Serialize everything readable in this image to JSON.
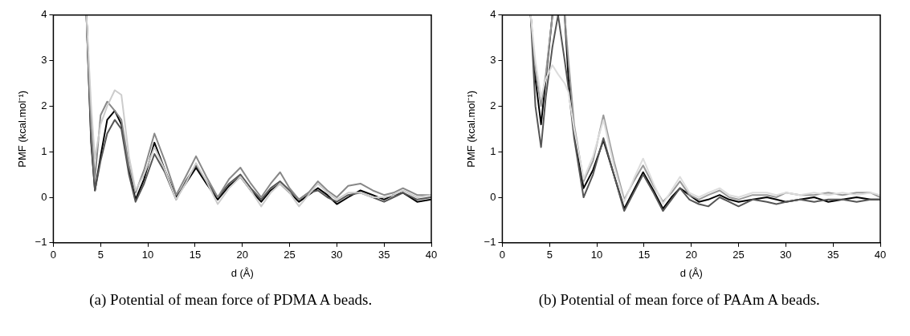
{
  "chart_data": [
    {
      "type": "line",
      "xlabel": "d (Å)",
      "ylabel": "PMF (kcal.mol⁻¹)",
      "annotations": [
        "(a) Potential of mean force of PDMA A beads."
      ],
      "xlim": [
        0,
        40
      ],
      "ylim": [
        -1,
        4
      ],
      "xticks": [
        0,
        5,
        10,
        15,
        20,
        25,
        30,
        35,
        40
      ],
      "yticks": [
        {
          "value": -1,
          "label": "−1"
        },
        0,
        1,
        2,
        3,
        4
      ],
      "grid": false,
      "legend": false,
      "marker": "none",
      "line_style": "solid",
      "x": [
        3.5,
        4.0,
        4.4,
        5.0,
        5.7,
        6.5,
        7.2,
        8.0,
        8.7,
        9.6,
        10.7,
        11.8,
        13.0,
        14.0,
        15.1,
        16.2,
        17.4,
        18.6,
        19.8,
        20.9,
        22.0,
        23.0,
        24.0,
        25.0,
        26.0,
        27.0,
        28.0,
        29.0,
        30.0,
        31.2,
        32.5,
        33.8,
        35.0,
        36.0,
        37.0,
        38.5,
        40.0
      ],
      "series": [
        {
          "color": "#cccccc",
          "values": [
            4,
            2.0,
            0.85,
            1.6,
            2.0,
            2.35,
            2.25,
            0.9,
            0.15,
            0.5,
            1.1,
            0.6,
            -0.05,
            0.3,
            0.75,
            0.35,
            -0.15,
            0.2,
            0.45,
            0.15,
            -0.2,
            0.1,
            0.3,
            0.1,
            -0.2,
            0.05,
            0.3,
            0.1,
            -0.05,
            0.1,
            0.1,
            0.0,
            0.0,
            0.05,
            0.15,
            0.0,
            0.05
          ]
        },
        {
          "color": "#888888",
          "values": [
            4,
            1.6,
            0.4,
            1.8,
            2.1,
            1.9,
            1.7,
            0.7,
            0.1,
            0.6,
            1.4,
            0.8,
            0.05,
            0.45,
            0.9,
            0.45,
            0.0,
            0.4,
            0.65,
            0.3,
            0.0,
            0.3,
            0.55,
            0.2,
            -0.05,
            0.1,
            0.35,
            0.15,
            0.0,
            0.25,
            0.3,
            0.15,
            0.05,
            0.1,
            0.2,
            0.05,
            0.05
          ]
        },
        {
          "color": "#555555",
          "values": [
            4,
            1.3,
            0.15,
            0.8,
            1.4,
            1.7,
            1.5,
            0.5,
            -0.1,
            0.3,
            0.95,
            0.55,
            -0.05,
            0.35,
            0.7,
            0.35,
            0.0,
            0.3,
            0.5,
            0.2,
            -0.05,
            0.2,
            0.35,
            0.15,
            -0.05,
            0.1,
            0.15,
            0.0,
            -0.1,
            0.05,
            0.1,
            0.0,
            -0.1,
            0.0,
            0.1,
            -0.05,
            0.0
          ]
        },
        {
          "color": "#000000",
          "values": [
            4,
            1.2,
            0.15,
            0.9,
            1.7,
            1.9,
            1.6,
            0.6,
            -0.05,
            0.4,
            1.2,
            0.6,
            0.0,
            0.3,
            0.65,
            0.3,
            -0.05,
            0.25,
            0.45,
            0.15,
            -0.1,
            0.15,
            0.3,
            0.1,
            -0.1,
            0.05,
            0.2,
            0.05,
            -0.15,
            0.0,
            0.15,
            0.05,
            -0.05,
            0.05,
            0.1,
            -0.1,
            -0.05
          ]
        }
      ]
    },
    {
      "type": "line",
      "xlabel": "d (Å)",
      "ylabel": "PMF (kcal.mol⁻¹)",
      "annotations": [
        "(b) Potential of mean force of PAAm A beads."
      ],
      "xlim": [
        0,
        40
      ],
      "ylim": [
        -1,
        4
      ],
      "xticks": [
        0,
        5,
        10,
        15,
        20,
        25,
        30,
        35,
        40
      ],
      "yticks": [
        {
          "value": -1,
          "label": "−1"
        },
        0,
        1,
        2,
        3,
        4
      ],
      "grid": false,
      "legend": false,
      "marker": "none",
      "line_style": "solid",
      "x": [
        3.0,
        3.5,
        4.1,
        4.6,
        5.3,
        5.9,
        6.6,
        7.0,
        7.6,
        8.6,
        9.6,
        10.7,
        11.8,
        12.9,
        13.9,
        14.9,
        16.0,
        17.0,
        17.9,
        18.8,
        19.8,
        20.8,
        21.8,
        23.0,
        24.0,
        25.0,
        26.5,
        28.0,
        29.0,
        30.0,
        31.5,
        33.0,
        34.5,
        36.0,
        37.5,
        39.0,
        40.0
      ],
      "series": [
        {
          "color": "#dddddd",
          "values": [
            4,
            3.0,
            2.2,
            2.6,
            2.9,
            2.7,
            2.5,
            2.3,
            1.5,
            0.4,
            0.9,
            1.7,
            0.7,
            -0.1,
            0.4,
            0.85,
            0.3,
            -0.15,
            0.15,
            0.45,
            0.1,
            0.0,
            0.1,
            0.2,
            0.05,
            0.0,
            0.1,
            0.1,
            0.05,
            0.1,
            0.05,
            0.1,
            0.05,
            0.1,
            0.05,
            0.1,
            0.05
          ]
        },
        {
          "color": "#999999",
          "values": [
            4,
            2.8,
            2.0,
            2.7,
            4,
            null,
            4,
            3.0,
            1.6,
            0.35,
            0.8,
            1.8,
            0.8,
            -0.05,
            0.35,
            0.7,
            0.25,
            -0.1,
            0.1,
            0.35,
            0.05,
            -0.05,
            0.05,
            0.15,
            0.0,
            -0.05,
            0.05,
            0.05,
            0.0,
            0.1,
            0.05,
            0.05,
            0.1,
            0.05,
            0.1,
            0.1,
            0.0
          ]
        },
        {
          "color": "#555555",
          "values": [
            4,
            2.0,
            1.1,
            2.2,
            3.3,
            4,
            3.0,
            2.4,
            1.3,
            0.0,
            0.5,
            1.3,
            0.5,
            -0.3,
            0.1,
            0.5,
            0.1,
            -0.3,
            -0.05,
            0.2,
            -0.05,
            -0.15,
            -0.2,
            0.0,
            -0.1,
            -0.2,
            -0.05,
            -0.1,
            -0.15,
            -0.1,
            -0.05,
            -0.1,
            -0.05,
            -0.05,
            -0.1,
            -0.05,
            -0.05
          ]
        },
        {
          "color": "#000000",
          "values": [
            4,
            2.6,
            1.6,
            2.6,
            4,
            null,
            4,
            2.6,
            1.4,
            0.2,
            0.6,
            1.25,
            0.5,
            -0.25,
            0.15,
            0.55,
            0.15,
            -0.25,
            0.0,
            0.2,
            0.05,
            -0.1,
            -0.05,
            0.05,
            -0.05,
            -0.1,
            -0.05,
            0.0,
            -0.05,
            -0.1,
            -0.05,
            0.0,
            -0.1,
            -0.05,
            0.0,
            -0.05,
            -0.05
          ]
        }
      ]
    }
  ]
}
